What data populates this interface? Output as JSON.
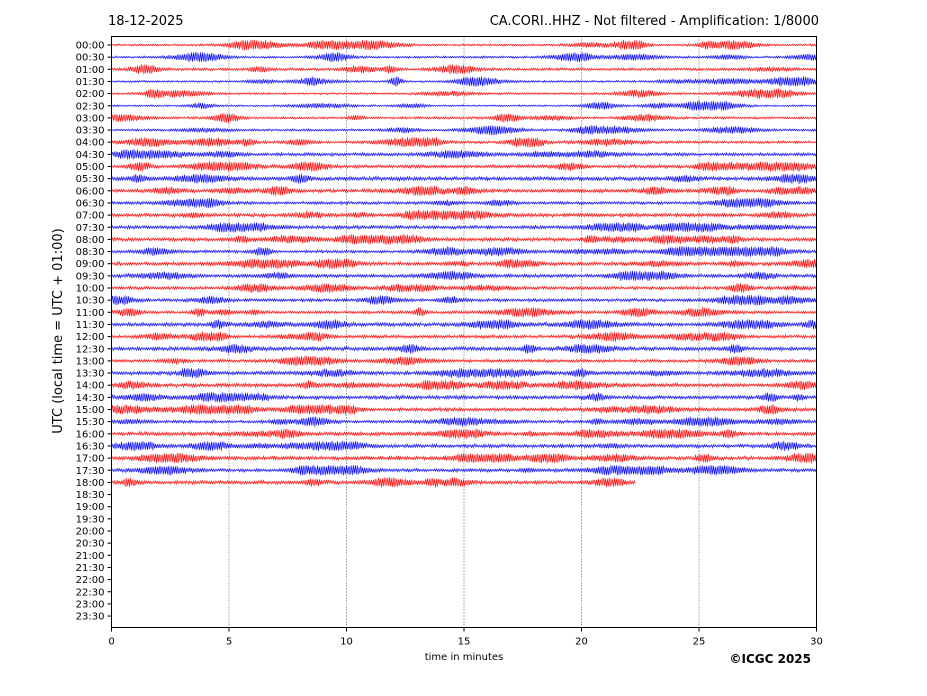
{
  "header": {
    "date": "18-12-2025",
    "title": "CA.CORI..HHZ - Not filtered - Amplification: 1/8000"
  },
  "copyright": "©ICGC 2025",
  "colors": {
    "trace_a": "#ff0000",
    "trace_b": "#0000ff",
    "axis": "#000000"
  },
  "chart_data": {
    "type": "line",
    "title": "CA.CORI..HHZ - Not filtered - Amplification: 1/8000",
    "xlabel": "time in minutes",
    "ylabel": "UTC (local time = UTC + 01:00)",
    "xlim": [
      0,
      30
    ],
    "x_ticks": [
      "0",
      "5",
      "10",
      "15",
      "20",
      "25",
      "30"
    ],
    "x_gridlines": [
      5,
      10,
      15,
      20,
      25
    ],
    "grid": "vertical dotted",
    "row_labels": [
      "00:00",
      "00:30",
      "01:00",
      "01:30",
      "02:00",
      "02:30",
      "03:00",
      "03:30",
      "04:00",
      "04:30",
      "05:00",
      "05:30",
      "06:00",
      "06:30",
      "07:00",
      "07:30",
      "08:00",
      "08:30",
      "09:00",
      "09:30",
      "10:00",
      "10:30",
      "11:00",
      "11:30",
      "12:00",
      "12:30",
      "13:00",
      "13:30",
      "14:00",
      "14:30",
      "15:00",
      "15:30",
      "16:00",
      "16:30",
      "17:00",
      "17:30",
      "18:00",
      "18:30",
      "19:00",
      "19:30",
      "20:00",
      "20:30",
      "21:00",
      "21:30",
      "22:00",
      "22:30",
      "23:00",
      "23:30"
    ],
    "recorded_rows": 37,
    "last_row_end_minute": 22.3,
    "color_pattern": [
      "red",
      "blue"
    ]
  }
}
